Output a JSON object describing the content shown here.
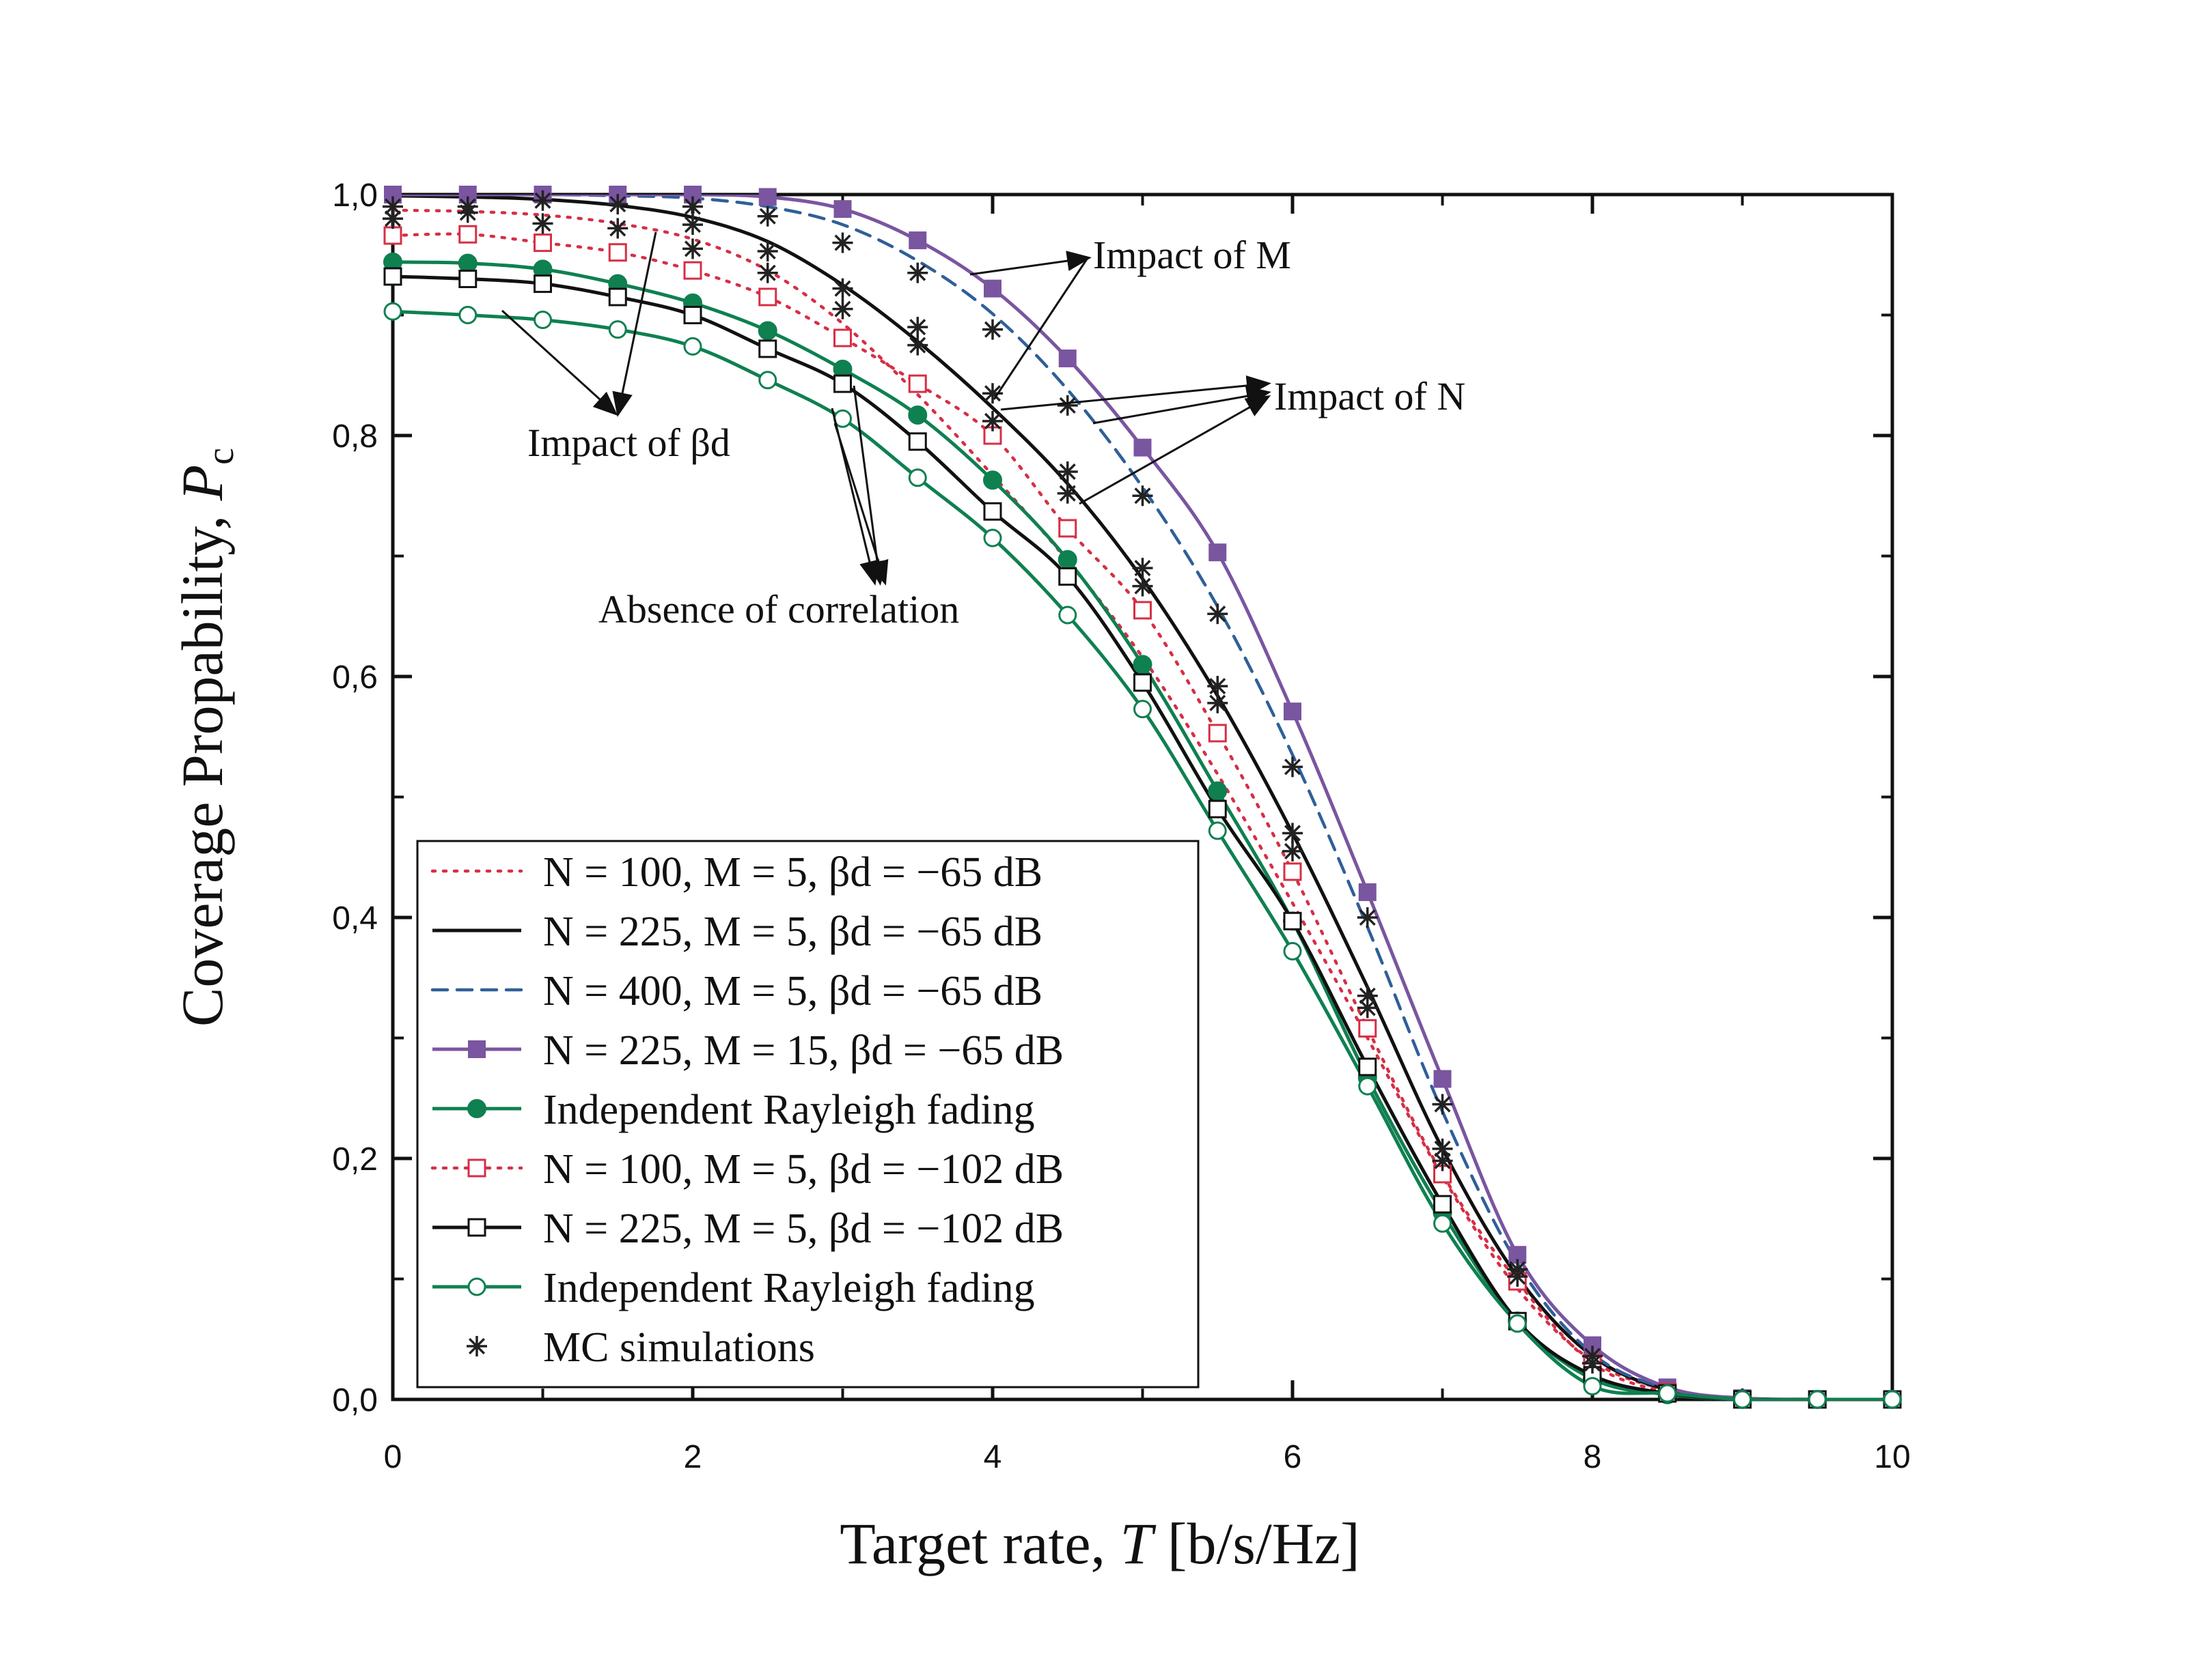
{
  "chart_data": {
    "type": "line",
    "xlabel": "Target rate, T [b/s/Hz]",
    "ylabel": "Coverage Propability, Pc",
    "xlim": [
      0,
      10
    ],
    "ylim": [
      0,
      1
    ],
    "xticks": [
      0,
      2,
      4,
      6,
      8,
      10
    ],
    "xtick_labels": [
      "0",
      "2",
      "4",
      "6",
      "8",
      "10"
    ],
    "yticks": [
      0,
      0.2,
      0.4,
      0.6,
      0.8,
      1.0
    ],
    "ytick_labels": [
      "0,0",
      "0,2",
      "0,4",
      "0,6",
      "0,8",
      "1,0"
    ],
    "grid": false,
    "legend_position": "lower-left",
    "x": [
      0,
      0.5,
      1,
      1.5,
      2,
      2.5,
      3,
      3.5,
      4,
      4.5,
      5,
      5.5,
      6,
      6.5,
      7,
      7.5,
      8,
      8.5,
      9,
      9.5,
      10
    ],
    "series": [
      {
        "name": "N = 100, M = 5, βd = −65 dB",
        "color": "#d62f45",
        "dash": "dot",
        "marker": "none",
        "values": [
          0.987,
          0.986,
          0.983,
          0.976,
          0.963,
          0.937,
          0.893,
          0.834,
          0.767,
          0.696,
          0.616,
          0.519,
          0.412,
          0.3,
          0.185,
          0.092,
          0.032,
          0.008,
          0.001,
          0,
          0
        ]
      },
      {
        "name": "N = 225, M = 5, βd = −65 dB",
        "color": "#111111",
        "dash": "solid",
        "marker": "none",
        "values": [
          0.999,
          0.998,
          0.996,
          0.991,
          0.981,
          0.961,
          0.925,
          0.878,
          0.823,
          0.76,
          0.681,
          0.584,
          0.47,
          0.342,
          0.208,
          0.102,
          0.036,
          0.008,
          0.001,
          0,
          0
        ]
      },
      {
        "name": "N = 400, M = 5, βd = −65 dB",
        "color": "#2f5f98",
        "dash": "dash",
        "marker": "none",
        "values": [
          1.0,
          1.0,
          1.0,
          0.999,
          0.997,
          0.99,
          0.975,
          0.945,
          0.901,
          0.838,
          0.757,
          0.658,
          0.535,
          0.392,
          0.239,
          0.113,
          0.038,
          0.009,
          0.001,
          0,
          0
        ]
      },
      {
        "name": "N = 225, M = 15, βd = −65 dB",
        "color": "#7a55a0",
        "dash": "solid",
        "marker": "square-filled",
        "values": [
          1.0,
          1.0,
          1.0,
          1.0,
          1.0,
          0.998,
          0.988,
          0.962,
          0.922,
          0.864,
          0.79,
          0.703,
          0.571,
          0.421,
          0.266,
          0.12,
          0.045,
          0.01,
          0.001,
          0,
          0
        ]
      },
      {
        "name": "Independent Rayleigh fading",
        "color": "#0f8050",
        "dash": "solid",
        "marker": "circle-filled",
        "values": [
          0.944,
          0.943,
          0.938,
          0.926,
          0.91,
          0.887,
          0.855,
          0.817,
          0.763,
          0.697,
          0.61,
          0.505,
          0.397,
          0.267,
          0.155,
          0.065,
          0.017,
          0.004,
          0,
          0,
          0
        ]
      },
      {
        "name": "N = 100, M = 5, βd = −102 dB",
        "color": "#d62f45",
        "dash": "dot",
        "marker": "square-open",
        "values": [
          0.966,
          0.967,
          0.96,
          0.952,
          0.937,
          0.915,
          0.881,
          0.843,
          0.8,
          0.723,
          0.655,
          0.553,
          0.438,
          0.308,
          0.187,
          0.098,
          0.03,
          0.006,
          0,
          0,
          0
        ]
      },
      {
        "name": "N = 225, M = 5, βd = −102 dB",
        "color": "#111111",
        "dash": "solid",
        "marker": "square-open",
        "values": [
          0.932,
          0.93,
          0.926,
          0.915,
          0.9,
          0.872,
          0.843,
          0.795,
          0.737,
          0.683,
          0.595,
          0.49,
          0.397,
          0.276,
          0.162,
          0.065,
          0.02,
          0.005,
          0,
          0,
          0
        ]
      },
      {
        "name": "Independent Rayleigh fading",
        "color": "#0f8050",
        "dash": "solid",
        "marker": "circle-open",
        "values": [
          0.903,
          0.9,
          0.896,
          0.888,
          0.874,
          0.846,
          0.814,
          0.765,
          0.715,
          0.651,
          0.573,
          0.472,
          0.372,
          0.26,
          0.146,
          0.063,
          0.011,
          0.005,
          0,
          0,
          0
        ]
      }
    ],
    "mc_simulations": {
      "name": "MC simulations",
      "marker": "asterisk",
      "color": "#222222",
      "points": [
        [
          0,
          0.99
        ],
        [
          0,
          0.98
        ],
        [
          0.5,
          0.99
        ],
        [
          0.5,
          0.985
        ],
        [
          1,
          0.995
        ],
        [
          1,
          0.976
        ],
        [
          1.5,
          0.992
        ],
        [
          1.5,
          0.972
        ],
        [
          2,
          0.99
        ],
        [
          2,
          0.975
        ],
        [
          2,
          0.955
        ],
        [
          2.5,
          0.982
        ],
        [
          2.5,
          0.953
        ],
        [
          2.5,
          0.935
        ],
        [
          3,
          0.96
        ],
        [
          3,
          0.922
        ],
        [
          3,
          0.905
        ],
        [
          3.5,
          0.935
        ],
        [
          3.5,
          0.89
        ],
        [
          3.5,
          0.875
        ],
        [
          4,
          0.888
        ],
        [
          4,
          0.835
        ],
        [
          4,
          0.812
        ],
        [
          4.5,
          0.825
        ],
        [
          4.5,
          0.77
        ],
        [
          4.5,
          0.752
        ],
        [
          5,
          0.75
        ],
        [
          5,
          0.69
        ],
        [
          5,
          0.675
        ],
        [
          5.5,
          0.652
        ],
        [
          5.5,
          0.592
        ],
        [
          5.5,
          0.578
        ],
        [
          6,
          0.525
        ],
        [
          6,
          0.47
        ],
        [
          6,
          0.455
        ],
        [
          6.5,
          0.4
        ],
        [
          6.5,
          0.335
        ],
        [
          6.5,
          0.325
        ],
        [
          7,
          0.245
        ],
        [
          7,
          0.208
        ],
        [
          7,
          0.198
        ],
        [
          7.5,
          0.108
        ],
        [
          7.5,
          0.102
        ],
        [
          8,
          0.036
        ],
        [
          8,
          0.03
        ]
      ]
    },
    "annotations": [
      {
        "text": "Impact of M"
      },
      {
        "text": "Impact of N"
      },
      {
        "text": "Impact of βd"
      },
      {
        "text": "Absence of correlation"
      }
    ]
  },
  "labels": {
    "ylabel_main": "Coverage Propability, ",
    "ylabel_var": "P",
    "ylabel_sub": "c",
    "xlabel_main": "Target rate, ",
    "xlabel_var": "T",
    "xlabel_unit": " [b/s/Hz]"
  }
}
